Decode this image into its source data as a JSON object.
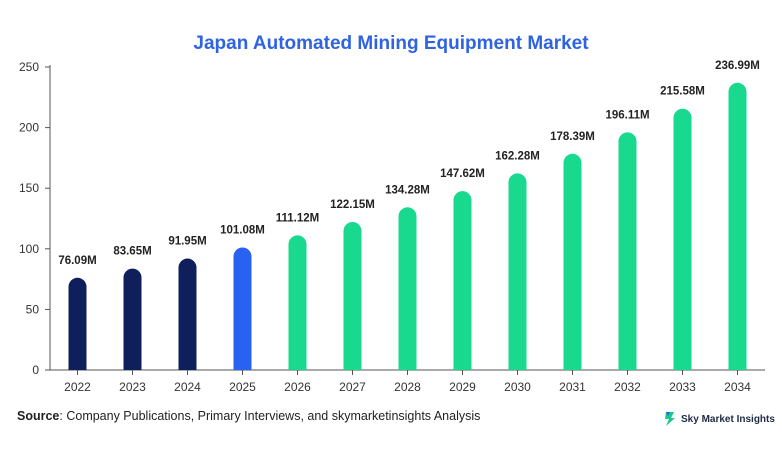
{
  "chart_data": {
    "type": "bar",
    "title": "Japan Automated Mining Equipment Market",
    "categories": [
      "2022",
      "2023",
      "2024",
      "2025",
      "2026",
      "2027",
      "2028",
      "2029",
      "2030",
      "2031",
      "2032",
      "2033",
      "2034"
    ],
    "values": [
      76.09,
      83.65,
      91.95,
      101.08,
      111.12,
      122.15,
      134.28,
      147.62,
      162.28,
      178.39,
      196.11,
      215.58,
      236.99
    ],
    "value_labels": [
      "76.09M",
      "83.65M",
      "91.95M",
      "101.08M",
      "111.12M",
      "122.15M",
      "134.28M",
      "147.62M",
      "162.28M",
      "178.39M",
      "196.11M",
      "215.58M",
      "236.99M"
    ],
    "bar_colors": [
      "#0f1f5c",
      "#0f1f5c",
      "#0f1f5c",
      "#2962f0",
      "#18d98e",
      "#18d98e",
      "#18d98e",
      "#18d98e",
      "#18d98e",
      "#18d98e",
      "#18d98e",
      "#18d98e",
      "#18d98e"
    ],
    "ylim": [
      0,
      250
    ],
    "yticks": [
      0,
      50,
      100,
      150,
      200,
      250
    ],
    "xlabel": "",
    "ylabel": "",
    "grid": false
  },
  "source": {
    "label": "Source",
    "text": ": Company Publications, Primary Interviews, and skymarketinsights Analysis"
  },
  "logo": {
    "text": "Sky Market Insights",
    "icon": "sky-market-insights-logo-icon"
  }
}
